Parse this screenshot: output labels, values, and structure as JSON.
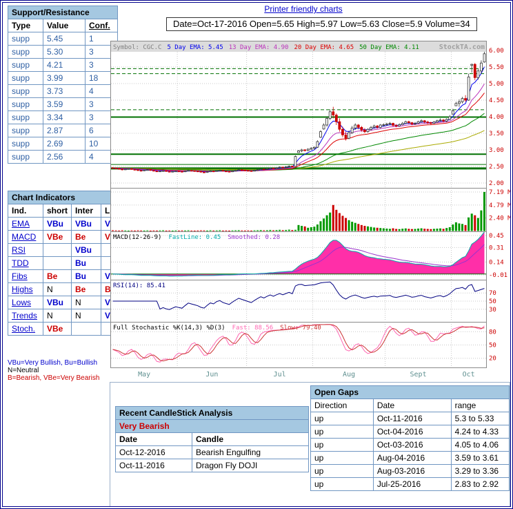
{
  "page": {
    "printer_link": "Printer friendly charts",
    "ohlc_line": "Date=Oct-17-2016 Open=5.65 High=5.97 Low=5.63 Close=5.9 Volume=34"
  },
  "support_resistance": {
    "title": "Support/Resistance",
    "columns": [
      "Type",
      "Value",
      "Conf."
    ],
    "rows": [
      [
        "supp",
        "5.45",
        "1"
      ],
      [
        "supp",
        "5.30",
        "3"
      ],
      [
        "supp",
        "4.21",
        "3"
      ],
      [
        "supp",
        "3.99",
        "18"
      ],
      [
        "supp",
        "3.73",
        "4"
      ],
      [
        "supp",
        "3.59",
        "3"
      ],
      [
        "supp",
        "3.34",
        "3"
      ],
      [
        "supp",
        "2.87",
        "6"
      ],
      [
        "supp",
        "2.69",
        "10"
      ],
      [
        "supp",
        "2.56",
        "4"
      ]
    ]
  },
  "chart_indicators": {
    "title": "Chart Indicators",
    "columns": [
      "Ind.",
      "short",
      "Inter",
      "Long"
    ],
    "rows": [
      [
        "EMA",
        "VBu",
        "VBu",
        "VBu"
      ],
      [
        "MACD",
        "VBe",
        "Be",
        "VBe"
      ],
      [
        "RSI",
        "",
        "VBu",
        ""
      ],
      [
        "TDD",
        "",
        "Bu",
        ""
      ],
      [
        "Fibs",
        "Be",
        "Bu",
        "VBu"
      ],
      [
        "Highs",
        "N",
        "Be",
        "Be"
      ],
      [
        "Lows",
        "VBu",
        "N",
        "VBu"
      ],
      [
        "Trends",
        "N",
        "N",
        "VBu"
      ],
      [
        "Stoch.",
        "VBe",
        "",
        ""
      ]
    ]
  },
  "legend": {
    "line1": "VBu=Very Bullish,  Bu=Bullish",
    "line2": "N=Neutral",
    "line3": "B=Bearish,   VBe=Very Bearish"
  },
  "candlestick_analysis": {
    "title": "Recent CandleStick Analysis",
    "rating": "Very Bearish",
    "columns": [
      "Date",
      "Candle"
    ],
    "rows": [
      [
        "Oct-12-2016",
        "Bearish Engulfing"
      ],
      [
        "Oct-11-2016",
        "Dragon Fly DOJI"
      ]
    ]
  },
  "open_gaps": {
    "title": "Open Gaps",
    "columns": [
      "Direction",
      "Date",
      "range"
    ],
    "rows": [
      [
        "up",
        "Oct-11-2016",
        "5.3 to 5.33"
      ],
      [
        "up",
        "Oct-04-2016",
        "4.24 to 4.33"
      ],
      [
        "up",
        "Oct-03-2016",
        "4.05 to 4.06"
      ],
      [
        "up",
        "Aug-04-2016",
        "3.59 to 3.61"
      ],
      [
        "up",
        "Aug-03-2016",
        "3.29 to 3.36"
      ],
      [
        "up",
        "Jul-25-2016",
        "2.83 to 2.92"
      ]
    ]
  },
  "chart_data": {
    "type": "candlestick",
    "symbol": "CGC.C",
    "watermark": "StockTA.com",
    "price_header": {
      "symbol": "Symbol: CGC.C",
      "emas": [
        {
          "label": "5 Day EMA: 5.45",
          "color": "#0000EE"
        },
        {
          "label": "13 Day EMA: 4.90",
          "color": "#BB33BB"
        },
        {
          "label": "20 Day EMA: 4.65",
          "color": "#DD0000"
        },
        {
          "label": "50 Day EMA: 4.11",
          "color": "#008800"
        }
      ]
    },
    "macd_header": {
      "name": "MACD(12-26-9)",
      "fast": "FastLine: 0.45",
      "smooth": "Smoothed: 0.28"
    },
    "rsi_header": "RSI(14): 85.41",
    "stoch_header": {
      "name": "Full Stochastic %K(14,3) %D(3)",
      "fast": "Fast: 88.56",
      "slow": "Slow: 79.40"
    },
    "x_labels": [
      "May",
      "Jun",
      "Jul",
      "Aug",
      "Sept",
      "Oct"
    ],
    "month_starts": [
      0,
      21,
      43,
      64,
      87,
      108
    ],
    "price_axis": [
      "6.00",
      "5.50",
      "5.00",
      "4.50",
      "4.00",
      "3.50",
      "3.00",
      "2.50",
      "2.00"
    ],
    "volume_axis": [
      {
        "label": "7.19 M",
        "value": 7.19
      },
      {
        "label": "4.79 M",
        "value": 4.79
      },
      {
        "label": "2.40 M",
        "value": 2.4
      }
    ],
    "macd_axis": [
      "0.45",
      "0.31",
      "0.14",
      "-0.01"
    ],
    "rsi_axis": [
      "70",
      "50",
      "30"
    ],
    "stoch_axis": [
      "80",
      "50",
      "20"
    ],
    "levels": [
      {
        "value": 5.45,
        "style": "dashed",
        "width": 1
      },
      {
        "value": 5.3,
        "style": "dashed",
        "width": 1
      },
      {
        "value": 4.21,
        "style": "dashed",
        "width": 1
      },
      {
        "value": 3.99,
        "style": "solid",
        "width": 2
      },
      {
        "value": 2.87,
        "style": "solid",
        "width": 2
      },
      {
        "value": 2.56,
        "style": "solid",
        "width": 1
      },
      {
        "value": 2.44,
        "style": "solid",
        "width": 3
      }
    ],
    "colors": {
      "ema5": "#0000EE",
      "ema13": "#BB33BB",
      "ema20": "#DD0000",
      "ema50": "#008800",
      "ema100": "#AAAA00",
      "macd_fast": "#00AAAA",
      "macd_smooth": "#9933CC",
      "macd_fill": "#FF2FA8",
      "rsi": "#000080",
      "stoch_k": "#FF66B2",
      "stoch_d": "#CC3333",
      "up": "#FFFFFF",
      "down": "#CC0000",
      "vol_up": "#009900",
      "level": "#007000",
      "axis_label": "#CC0000",
      "month_label": "#5E8F8F"
    },
    "candles": [
      [
        2.46,
        2.48,
        2.43,
        2.45
      ],
      [
        2.45,
        2.47,
        2.42,
        2.44
      ],
      [
        2.44,
        2.45,
        2.4,
        2.42
      ],
      [
        2.42,
        2.44,
        2.38,
        2.4
      ],
      [
        2.4,
        2.43,
        2.39,
        2.42
      ],
      [
        2.42,
        2.45,
        2.41,
        2.43
      ],
      [
        2.43,
        2.44,
        2.4,
        2.41
      ],
      [
        2.41,
        2.42,
        2.38,
        2.4
      ],
      [
        2.4,
        2.41,
        2.36,
        2.38
      ],
      [
        2.38,
        2.4,
        2.35,
        2.37
      ],
      [
        2.37,
        2.4,
        2.36,
        2.39
      ],
      [
        2.39,
        2.42,
        2.38,
        2.4
      ],
      [
        2.4,
        2.41,
        2.37,
        2.38
      ],
      [
        2.38,
        2.39,
        2.35,
        2.36
      ],
      [
        2.36,
        2.38,
        2.34,
        2.35
      ],
      [
        2.35,
        2.38,
        2.34,
        2.36
      ],
      [
        2.36,
        2.39,
        2.35,
        2.37
      ],
      [
        2.37,
        2.38,
        2.34,
        2.35
      ],
      [
        2.35,
        2.36,
        2.32,
        2.34
      ],
      [
        2.34,
        2.37,
        2.33,
        2.35
      ],
      [
        2.35,
        2.38,
        2.34,
        2.36
      ],
      [
        2.36,
        2.37,
        2.33,
        2.35
      ],
      [
        2.35,
        2.36,
        2.32,
        2.34
      ],
      [
        2.34,
        2.38,
        2.33,
        2.36
      ],
      [
        2.36,
        2.4,
        2.35,
        2.38
      ],
      [
        2.38,
        2.39,
        2.35,
        2.37
      ],
      [
        2.37,
        2.38,
        2.34,
        2.36
      ],
      [
        2.36,
        2.37,
        2.33,
        2.35
      ],
      [
        2.35,
        2.36,
        2.31,
        2.33
      ],
      [
        2.33,
        2.34,
        2.3,
        2.32
      ],
      [
        2.32,
        2.36,
        2.31,
        2.34
      ],
      [
        2.34,
        2.38,
        2.33,
        2.36
      ],
      [
        2.36,
        2.37,
        2.33,
        2.35
      ],
      [
        2.35,
        2.39,
        2.34,
        2.37
      ],
      [
        2.37,
        2.4,
        2.36,
        2.38
      ],
      [
        2.38,
        2.39,
        2.35,
        2.36
      ],
      [
        2.36,
        2.37,
        2.33,
        2.35
      ],
      [
        2.35,
        2.36,
        2.32,
        2.34
      ],
      [
        2.34,
        2.38,
        2.33,
        2.36
      ],
      [
        2.36,
        2.4,
        2.35,
        2.38
      ],
      [
        2.38,
        2.42,
        2.37,
        2.4
      ],
      [
        2.4,
        2.41,
        2.37,
        2.39
      ],
      [
        2.39,
        2.4,
        2.36,
        2.38
      ],
      [
        2.38,
        2.39,
        2.35,
        2.37
      ],
      [
        2.37,
        2.38,
        2.34,
        2.36
      ],
      [
        2.36,
        2.4,
        2.35,
        2.38
      ],
      [
        2.38,
        2.42,
        2.37,
        2.4
      ],
      [
        2.4,
        2.44,
        2.39,
        2.42
      ],
      [
        2.42,
        2.43,
        2.39,
        2.41
      ],
      [
        2.41,
        2.45,
        2.4,
        2.43
      ],
      [
        2.43,
        2.47,
        2.42,
        2.45
      ],
      [
        2.45,
        2.46,
        2.42,
        2.44
      ],
      [
        2.44,
        2.48,
        2.43,
        2.46
      ],
      [
        2.46,
        2.5,
        2.45,
        2.48
      ],
      [
        2.48,
        2.49,
        2.45,
        2.47
      ],
      [
        2.47,
        2.51,
        2.46,
        2.49
      ],
      [
        2.49,
        2.53,
        2.48,
        2.51
      ],
      [
        2.51,
        2.52,
        2.48,
        2.5
      ],
      [
        2.5,
        2.83,
        2.49,
        2.8
      ],
      [
        2.92,
        3.0,
        2.92,
        2.97
      ],
      [
        2.97,
        3.03,
        2.93,
        3.0
      ],
      [
        3.0,
        3.02,
        2.95,
        2.98
      ],
      [
        2.98,
        3.05,
        2.96,
        3.02
      ],
      [
        3.02,
        3.08,
        3.0,
        3.05
      ],
      [
        3.05,
        3.1,
        3.0,
        3.08
      ],
      [
        3.08,
        3.29,
        3.06,
        3.25
      ],
      [
        3.38,
        3.59,
        3.36,
        3.55
      ],
      [
        3.63,
        3.8,
        3.61,
        3.75
      ],
      [
        3.75,
        4.0,
        3.7,
        3.95
      ],
      [
        3.95,
        4.22,
        3.9,
        4.15
      ],
      [
        4.15,
        4.3,
        3.95,
        4.05
      ],
      [
        4.05,
        4.1,
        3.75,
        3.85
      ],
      [
        3.85,
        3.95,
        3.55,
        3.62
      ],
      [
        3.62,
        3.7,
        3.38,
        3.45
      ],
      [
        3.45,
        3.55,
        3.28,
        3.35
      ],
      [
        3.35,
        3.58,
        3.32,
        3.52
      ],
      [
        3.52,
        3.72,
        3.48,
        3.66
      ],
      [
        3.66,
        3.8,
        3.6,
        3.75
      ],
      [
        3.75,
        3.78,
        3.62,
        3.68
      ],
      [
        3.68,
        3.72,
        3.55,
        3.6
      ],
      [
        3.6,
        3.66,
        3.5,
        3.55
      ],
      [
        3.55,
        3.65,
        3.52,
        3.62
      ],
      [
        3.62,
        3.72,
        3.58,
        3.68
      ],
      [
        3.68,
        3.76,
        3.64,
        3.72
      ],
      [
        3.72,
        3.75,
        3.64,
        3.68
      ],
      [
        3.68,
        3.78,
        3.65,
        3.75
      ],
      [
        3.75,
        3.8,
        3.7,
        3.76
      ],
      [
        3.76,
        3.82,
        3.72,
        3.78
      ],
      [
        3.78,
        3.84,
        3.74,
        3.8
      ],
      [
        3.8,
        3.82,
        3.7,
        3.74
      ],
      [
        3.74,
        3.78,
        3.68,
        3.72
      ],
      [
        3.72,
        3.8,
        3.7,
        3.76
      ],
      [
        3.76,
        3.84,
        3.74,
        3.8
      ],
      [
        3.8,
        3.88,
        3.78,
        3.85
      ],
      [
        3.85,
        3.88,
        3.78,
        3.82
      ],
      [
        3.82,
        3.84,
        3.74,
        3.78
      ],
      [
        3.78,
        3.84,
        3.75,
        3.8
      ],
      [
        3.8,
        3.88,
        3.78,
        3.85
      ],
      [
        3.85,
        3.92,
        3.82,
        3.88
      ],
      [
        3.88,
        3.9,
        3.8,
        3.84
      ],
      [
        3.84,
        3.88,
        3.78,
        3.82
      ],
      [
        3.82,
        3.85,
        3.76,
        3.8
      ],
      [
        3.8,
        3.87,
        3.78,
        3.84
      ],
      [
        3.84,
        3.91,
        3.81,
        3.88
      ],
      [
        3.88,
        3.95,
        3.85,
        3.9
      ],
      [
        3.9,
        3.93,
        3.83,
        3.87
      ],
      [
        3.87,
        3.95,
        3.83,
        3.92
      ],
      [
        3.92,
        4.05,
        3.9,
        4.0
      ],
      [
        4.08,
        4.24,
        4.06,
        4.18
      ],
      [
        4.33,
        4.45,
        4.33,
        4.4
      ],
      [
        4.4,
        4.52,
        4.3,
        4.45
      ],
      [
        4.45,
        4.6,
        4.4,
        4.55
      ],
      [
        4.55,
        4.65,
        4.45,
        4.5
      ],
      [
        4.5,
        5.3,
        4.48,
        5.2
      ],
      [
        5.55,
        5.6,
        5.33,
        5.58
      ],
      [
        5.58,
        5.62,
        5.1,
        5.18
      ],
      [
        5.18,
        5.45,
        5.12,
        5.38
      ],
      [
        5.38,
        5.7,
        5.3,
        5.62
      ],
      [
        5.65,
        5.97,
        5.63,
        5.9
      ]
    ],
    "volumes": [
      0.15,
      0.12,
      0.1,
      0.14,
      0.11,
      0.09,
      0.12,
      0.1,
      0.13,
      0.11,
      0.1,
      0.12,
      0.09,
      0.11,
      0.1,
      0.12,
      0.14,
      0.1,
      0.11,
      0.09,
      0.12,
      0.1,
      0.12,
      0.11,
      0.14,
      0.1,
      0.09,
      0.11,
      0.13,
      0.12,
      0.1,
      0.14,
      0.11,
      0.12,
      0.15,
      0.1,
      0.11,
      0.09,
      0.12,
      0.14,
      0.16,
      0.12,
      0.11,
      0.12,
      0.1,
      0.13,
      0.15,
      0.18,
      0.14,
      0.16,
      0.2,
      0.15,
      0.18,
      0.22,
      0.17,
      0.2,
      0.25,
      0.19,
      0.22,
      1.1,
      0.95,
      0.85,
      0.6,
      0.7,
      0.8,
      1.2,
      1.8,
      2.3,
      2.9,
      3.4,
      4.79,
      3.9,
      3.3,
      2.8,
      2.4,
      2.0,
      1.7,
      1.5,
      1.3,
      1.1,
      0.95,
      0.85,
      0.75,
      0.65,
      0.6,
      0.55,
      0.5,
      0.45,
      0.4,
      0.5,
      0.38,
      0.35,
      0.42,
      0.48,
      0.4,
      0.36,
      0.38,
      0.45,
      0.5,
      0.42,
      0.38,
      0.35,
      0.4,
      0.44,
      0.48,
      0.4,
      0.55,
      0.7,
      1.2,
      1.6,
      1.4,
      1.3,
      1.1,
      2.5,
      3.2,
      2.9,
      2.4,
      3.8,
      7.19
    ]
  }
}
